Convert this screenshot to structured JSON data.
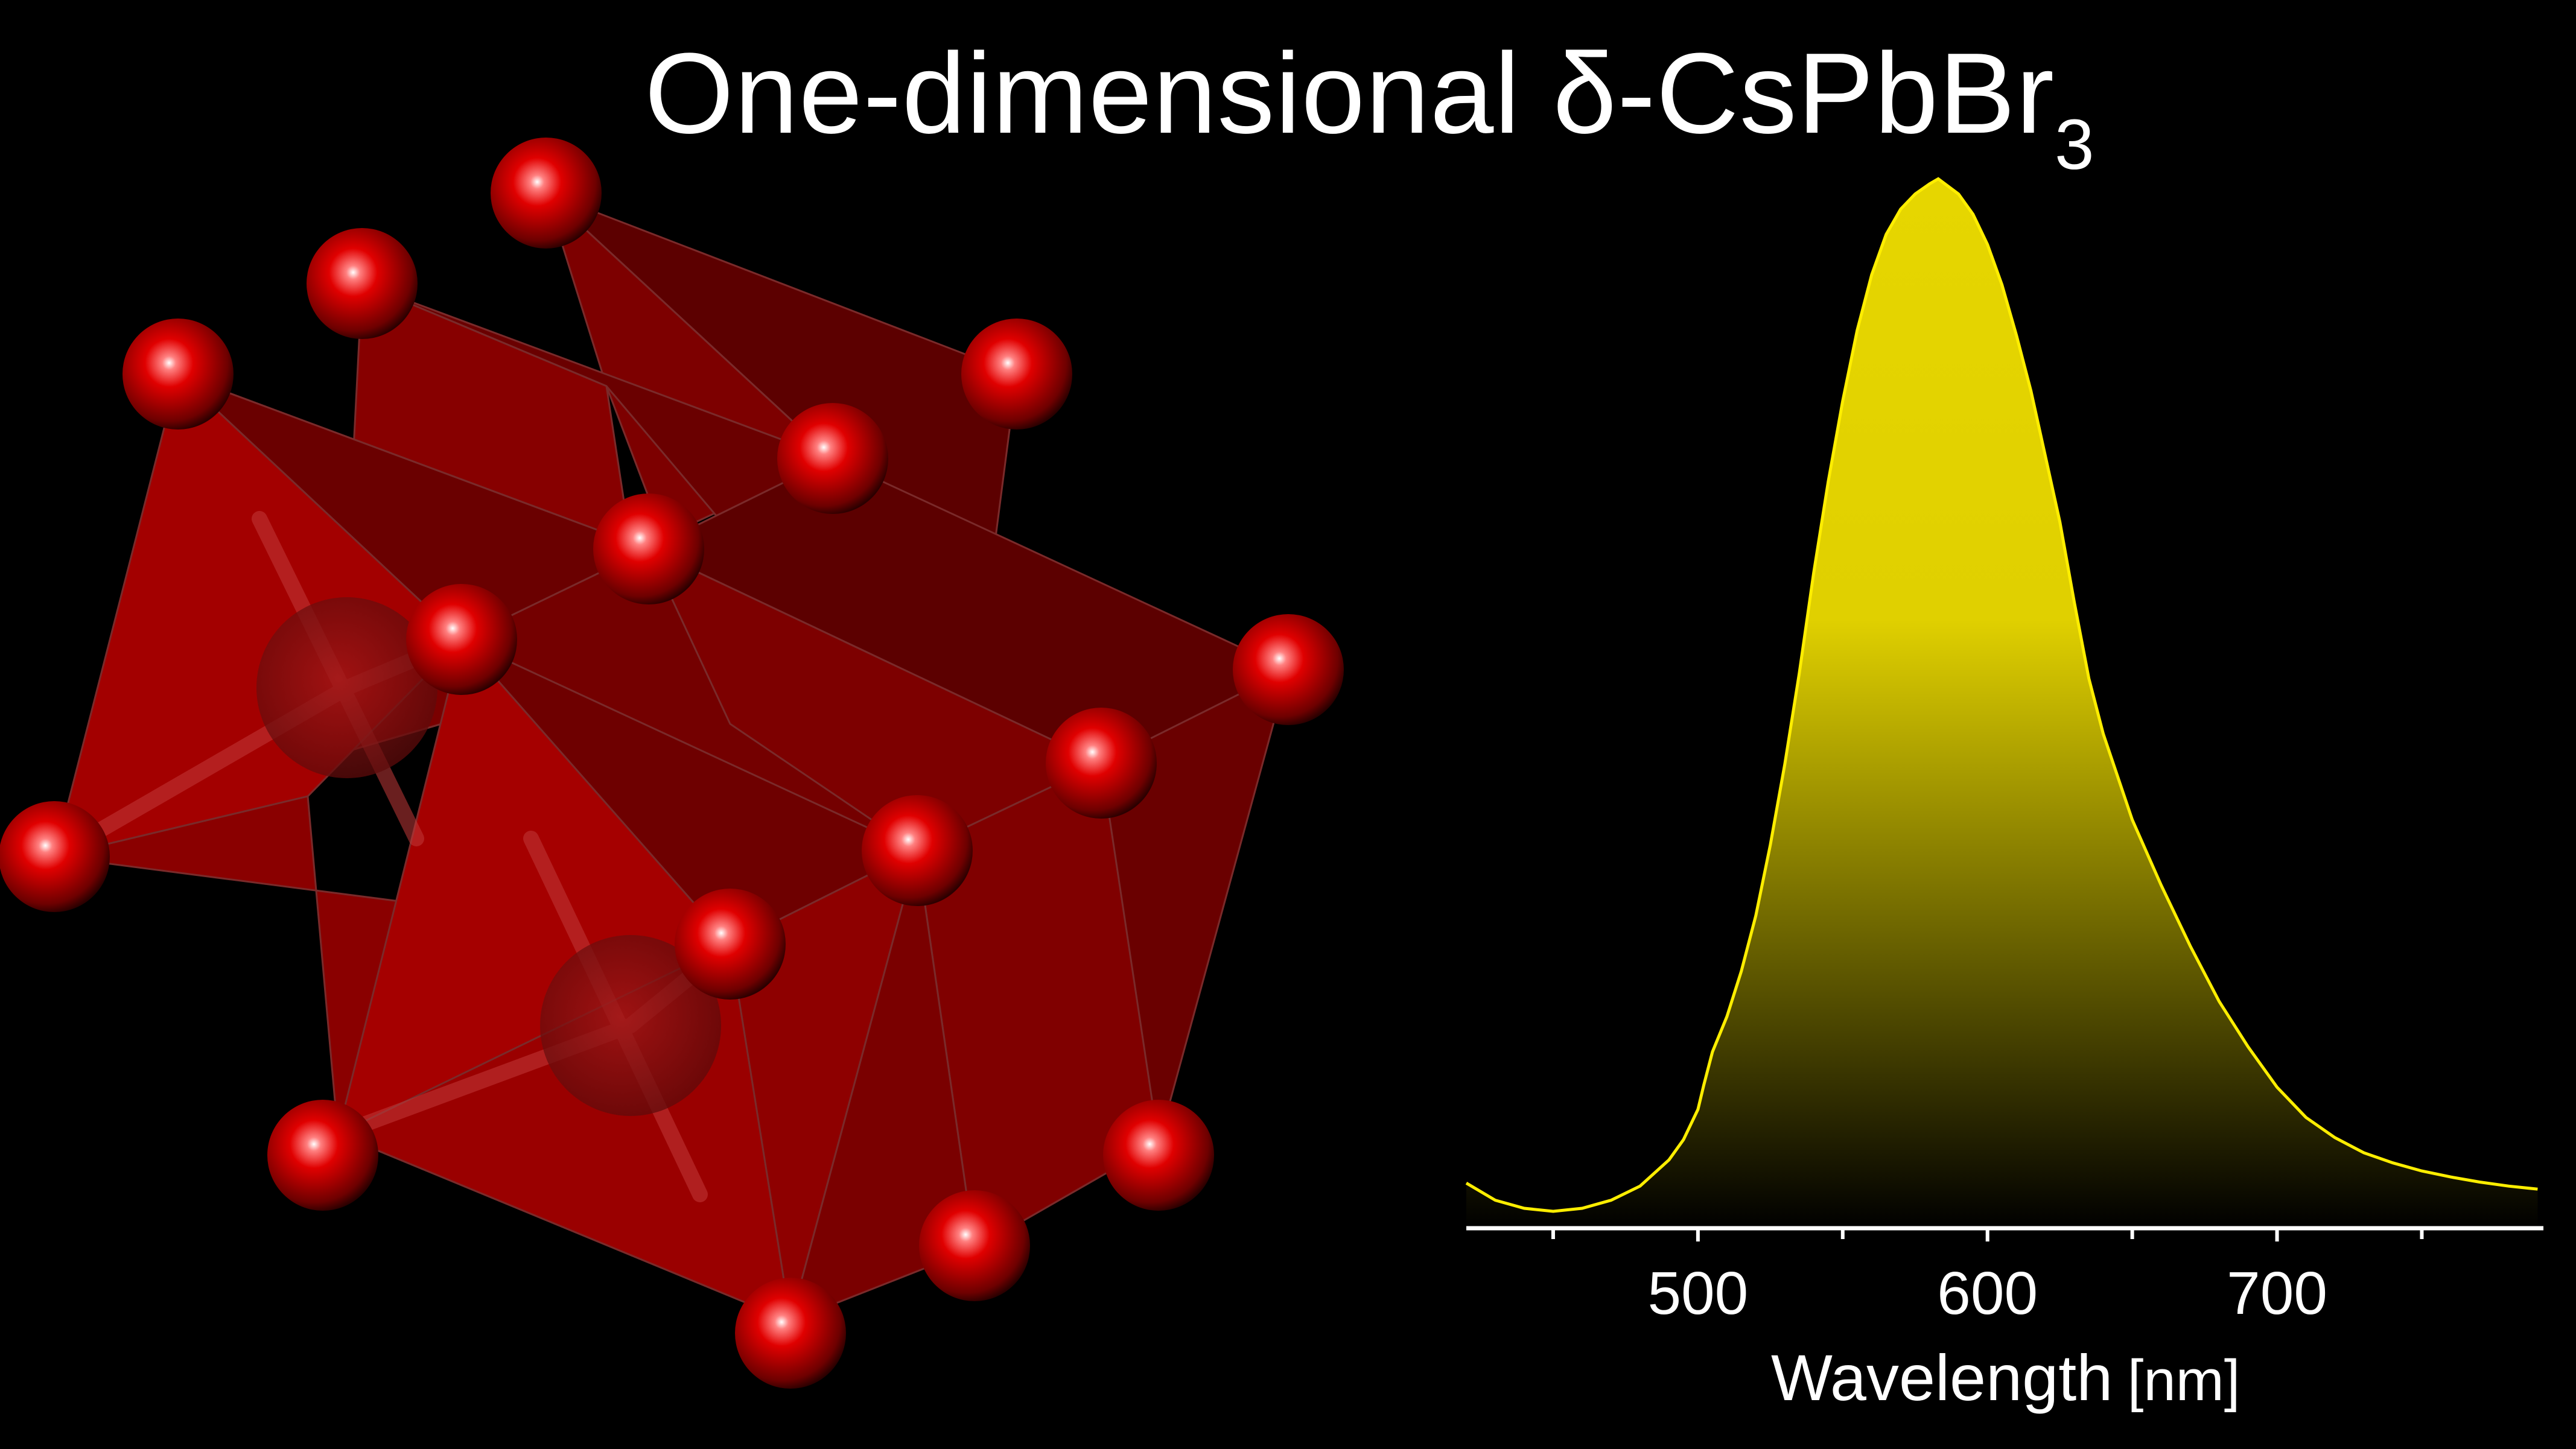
{
  "title": {
    "main": "One-dimensional δ-CsPbBr",
    "subscript": "3"
  },
  "colors": {
    "background": "#000000",
    "octahedron_face": "#8e0000",
    "octahedron_face_light": "#b10000",
    "octahedron_face_dark": "#5c0000",
    "bromine_atom": "#e00000",
    "lead_atom": "#7a0b0b",
    "spectrum_line": "#ffee00",
    "spectrum_fill_top": "#e6d600",
    "axis": "#ffffff"
  },
  "structure": {
    "description_icon": "red-octahedra-chain-icon"
  },
  "chart_data": {
    "type": "area",
    "xlabel": "Wavelength",
    "xunit": "[nm]",
    "ylabel": "",
    "xlim": [
      420,
      792
    ],
    "ylim": [
      0,
      1
    ],
    "xticks_major": [
      500,
      600,
      700
    ],
    "xticks_minor": [
      450,
      550,
      650,
      750
    ],
    "grid": false,
    "series": [
      {
        "x": [
          420,
          430,
          440,
          450,
          460,
          470,
          480,
          490,
          495,
          500,
          502,
          505,
          510,
          515,
          520,
          525,
          530,
          535,
          540,
          545,
          550,
          555,
          560,
          565,
          570,
          575,
          580,
          583,
          590,
          595,
          600,
          605,
          610,
          615,
          620,
          625,
          630,
          635,
          640,
          650,
          660,
          670,
          680,
          690,
          700,
          710,
          720,
          730,
          740,
          750,
          760,
          770,
          780,
          790
        ],
        "values": [
          0.025,
          0.008,
          0.0,
          -0.003,
          0.0,
          0.008,
          0.022,
          0.048,
          0.068,
          0.098,
          0.122,
          0.155,
          0.19,
          0.235,
          0.29,
          0.36,
          0.44,
          0.53,
          0.63,
          0.72,
          0.8,
          0.87,
          0.925,
          0.965,
          0.99,
          1.005,
          1.015,
          1.02,
          1.005,
          0.985,
          0.955,
          0.915,
          0.865,
          0.81,
          0.745,
          0.68,
          0.6,
          0.525,
          0.47,
          0.385,
          0.32,
          0.26,
          0.205,
          0.16,
          0.12,
          0.09,
          0.07,
          0.055,
          0.045,
          0.037,
          0.031,
          0.026,
          0.022,
          0.019
        ]
      }
    ]
  }
}
